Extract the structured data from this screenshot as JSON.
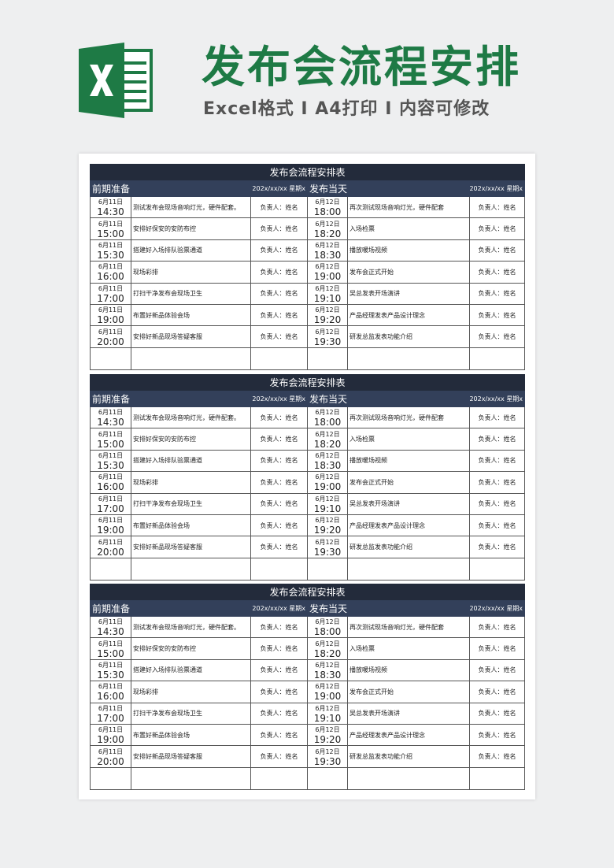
{
  "header": {
    "title": "发布会流程安排",
    "subtitle": "Excel格式 I A4打印 I 内容可修改"
  },
  "tables": [
    {
      "title": "发布会流程安排表",
      "left_header": "前期准备",
      "left_date": "202x/xx/xx 星期x",
      "right_header": "发布当天",
      "right_date": "202x/xx/xx 星期x",
      "rows": [
        {
          "left_day": "6月11日",
          "left_time": "14:30",
          "left_task": "测试发布会现场音响灯光，硬件配套。",
          "left_owner": "负责人：姓名",
          "right_day": "6月12日",
          "right_time": "18:00",
          "right_task": "再次测试现场音响灯光，硬件配套",
          "right_owner": "负责人：姓名"
        },
        {
          "left_day": "6月11日",
          "left_time": "15:00",
          "left_task": "安排好保安的安防布控",
          "left_owner": "负责人：姓名",
          "right_day": "6月12日",
          "right_time": "18:20",
          "right_task": "入场检票",
          "right_owner": "负责人：姓名"
        },
        {
          "left_day": "6月11日",
          "left_time": "15:30",
          "left_task": "搭建好入场排队验票通道",
          "left_owner": "负责人：姓名",
          "right_day": "6月12日",
          "right_time": "18:30",
          "right_task": "播放暖场视频",
          "right_owner": "负责人：姓名"
        },
        {
          "left_day": "6月11日",
          "left_time": "16:00",
          "left_task": "现场彩排",
          "left_owner": "负责人：姓名",
          "right_day": "6月12日",
          "right_time": "19:00",
          "right_task": "发布会正式开始",
          "right_owner": "负责人：姓名"
        },
        {
          "left_day": "6月11日",
          "left_time": "17:00",
          "left_task": "打扫干净发布会现场卫生",
          "left_owner": "负责人：姓名",
          "right_day": "6月12日",
          "right_time": "19:10",
          "right_task": "吴总发表开场演讲",
          "right_owner": "负责人：姓名"
        },
        {
          "left_day": "6月11日",
          "left_time": "19:00",
          "left_task": "布置好新品体验会场",
          "left_owner": "负责人：姓名",
          "right_day": "6月12日",
          "right_time": "19:20",
          "right_task": "产品经理发表产品设计理念",
          "right_owner": "负责人：姓名"
        },
        {
          "left_day": "6月11日",
          "left_time": "20:00",
          "left_task": "安排好新品现场答疑客服",
          "left_owner": "负责人：姓名",
          "right_day": "6月12日",
          "right_time": "19:30",
          "right_task": "研发总监发表功能介绍",
          "right_owner": "负责人：姓名"
        }
      ]
    },
    {
      "title": "发布会流程安排表",
      "left_header": "前期准备",
      "left_date": "202x/xx/xx 星期x",
      "right_header": "发布当天",
      "right_date": "202x/xx/xx 星期x",
      "rows": [
        {
          "left_day": "6月11日",
          "left_time": "14:30",
          "left_task": "测试发布会现场音响灯光，硬件配套。",
          "left_owner": "负责人：姓名",
          "right_day": "6月12日",
          "right_time": "18:00",
          "right_task": "再次测试现场音响灯光，硬件配套",
          "right_owner": "负责人：姓名"
        },
        {
          "left_day": "6月11日",
          "left_time": "15:00",
          "left_task": "安排好保安的安防布控",
          "left_owner": "负责人：姓名",
          "right_day": "6月12日",
          "right_time": "18:20",
          "right_task": "入场检票",
          "right_owner": "负责人：姓名"
        },
        {
          "left_day": "6月11日",
          "left_time": "15:30",
          "left_task": "搭建好入场排队验票通道",
          "left_owner": "负责人：姓名",
          "right_day": "6月12日",
          "right_time": "18:30",
          "right_task": "播放暖场视频",
          "right_owner": "负责人：姓名"
        },
        {
          "left_day": "6月11日",
          "left_time": "16:00",
          "left_task": "现场彩排",
          "left_owner": "负责人：姓名",
          "right_day": "6月12日",
          "right_time": "19:00",
          "right_task": "发布会正式开始",
          "right_owner": "负责人：姓名"
        },
        {
          "left_day": "6月11日",
          "left_time": "17:00",
          "left_task": "打扫干净发布会现场卫生",
          "left_owner": "负责人：姓名",
          "right_day": "6月12日",
          "right_time": "19:10",
          "right_task": "吴总发表开场演讲",
          "right_owner": "负责人：姓名"
        },
        {
          "left_day": "6月11日",
          "left_time": "19:00",
          "left_task": "布置好新品体验会场",
          "left_owner": "负责人：姓名",
          "right_day": "6月12日",
          "right_time": "19:20",
          "right_task": "产品经理发表产品设计理念",
          "right_owner": "负责人：姓名"
        },
        {
          "left_day": "6月11日",
          "left_time": "20:00",
          "left_task": "安排好新品现场答疑客服",
          "left_owner": "负责人：姓名",
          "right_day": "6月12日",
          "right_time": "19:30",
          "right_task": "研发总监发表功能介绍",
          "right_owner": "负责人：姓名"
        }
      ]
    },
    {
      "title": "发布会流程安排表",
      "left_header": "前期准备",
      "left_date": "202x/xx/xx 星期x",
      "right_header": "发布当天",
      "right_date": "202x/xx/xx 星期x",
      "rows": [
        {
          "left_day": "6月11日",
          "left_time": "14:30",
          "left_task": "测试发布会现场音响灯光，硬件配套。",
          "left_owner": "负责人：姓名",
          "right_day": "6月12日",
          "right_time": "18:00",
          "right_task": "再次测试现场音响灯光，硬件配套",
          "right_owner": "负责人：姓名"
        },
        {
          "left_day": "6月11日",
          "left_time": "15:00",
          "left_task": "安排好保安的安防布控",
          "left_owner": "负责人：姓名",
          "right_day": "6月12日",
          "right_time": "18:20",
          "right_task": "入场检票",
          "right_owner": "负责人：姓名"
        },
        {
          "left_day": "6月11日",
          "left_time": "15:30",
          "left_task": "搭建好入场排队验票通道",
          "left_owner": "负责人：姓名",
          "right_day": "6月12日",
          "right_time": "18:30",
          "right_task": "播放暖场视频",
          "right_owner": "负责人：姓名"
        },
        {
          "left_day": "6月11日",
          "left_time": "16:00",
          "left_task": "现场彩排",
          "left_owner": "负责人：姓名",
          "right_day": "6月12日",
          "right_time": "19:00",
          "right_task": "发布会正式开始",
          "right_owner": "负责人：姓名"
        },
        {
          "left_day": "6月11日",
          "left_time": "17:00",
          "left_task": "打扫干净发布会现场卫生",
          "left_owner": "负责人：姓名",
          "right_day": "6月12日",
          "right_time": "19:10",
          "right_task": "吴总发表开场演讲",
          "right_owner": "负责人：姓名"
        },
        {
          "left_day": "6月11日",
          "left_time": "19:00",
          "left_task": "布置好新品体验会场",
          "left_owner": "负责人：姓名",
          "right_day": "6月12日",
          "right_time": "19:20",
          "right_task": "产品经理发表产品设计理念",
          "right_owner": "负责人：姓名"
        },
        {
          "left_day": "6月11日",
          "left_time": "20:00",
          "left_task": "安排好新品现场答疑客服",
          "left_owner": "负责人：姓名",
          "right_day": "6月12日",
          "right_time": "19:30",
          "right_task": "研发总监发表功能介绍",
          "right_owner": "负责人：姓名"
        }
      ]
    }
  ]
}
